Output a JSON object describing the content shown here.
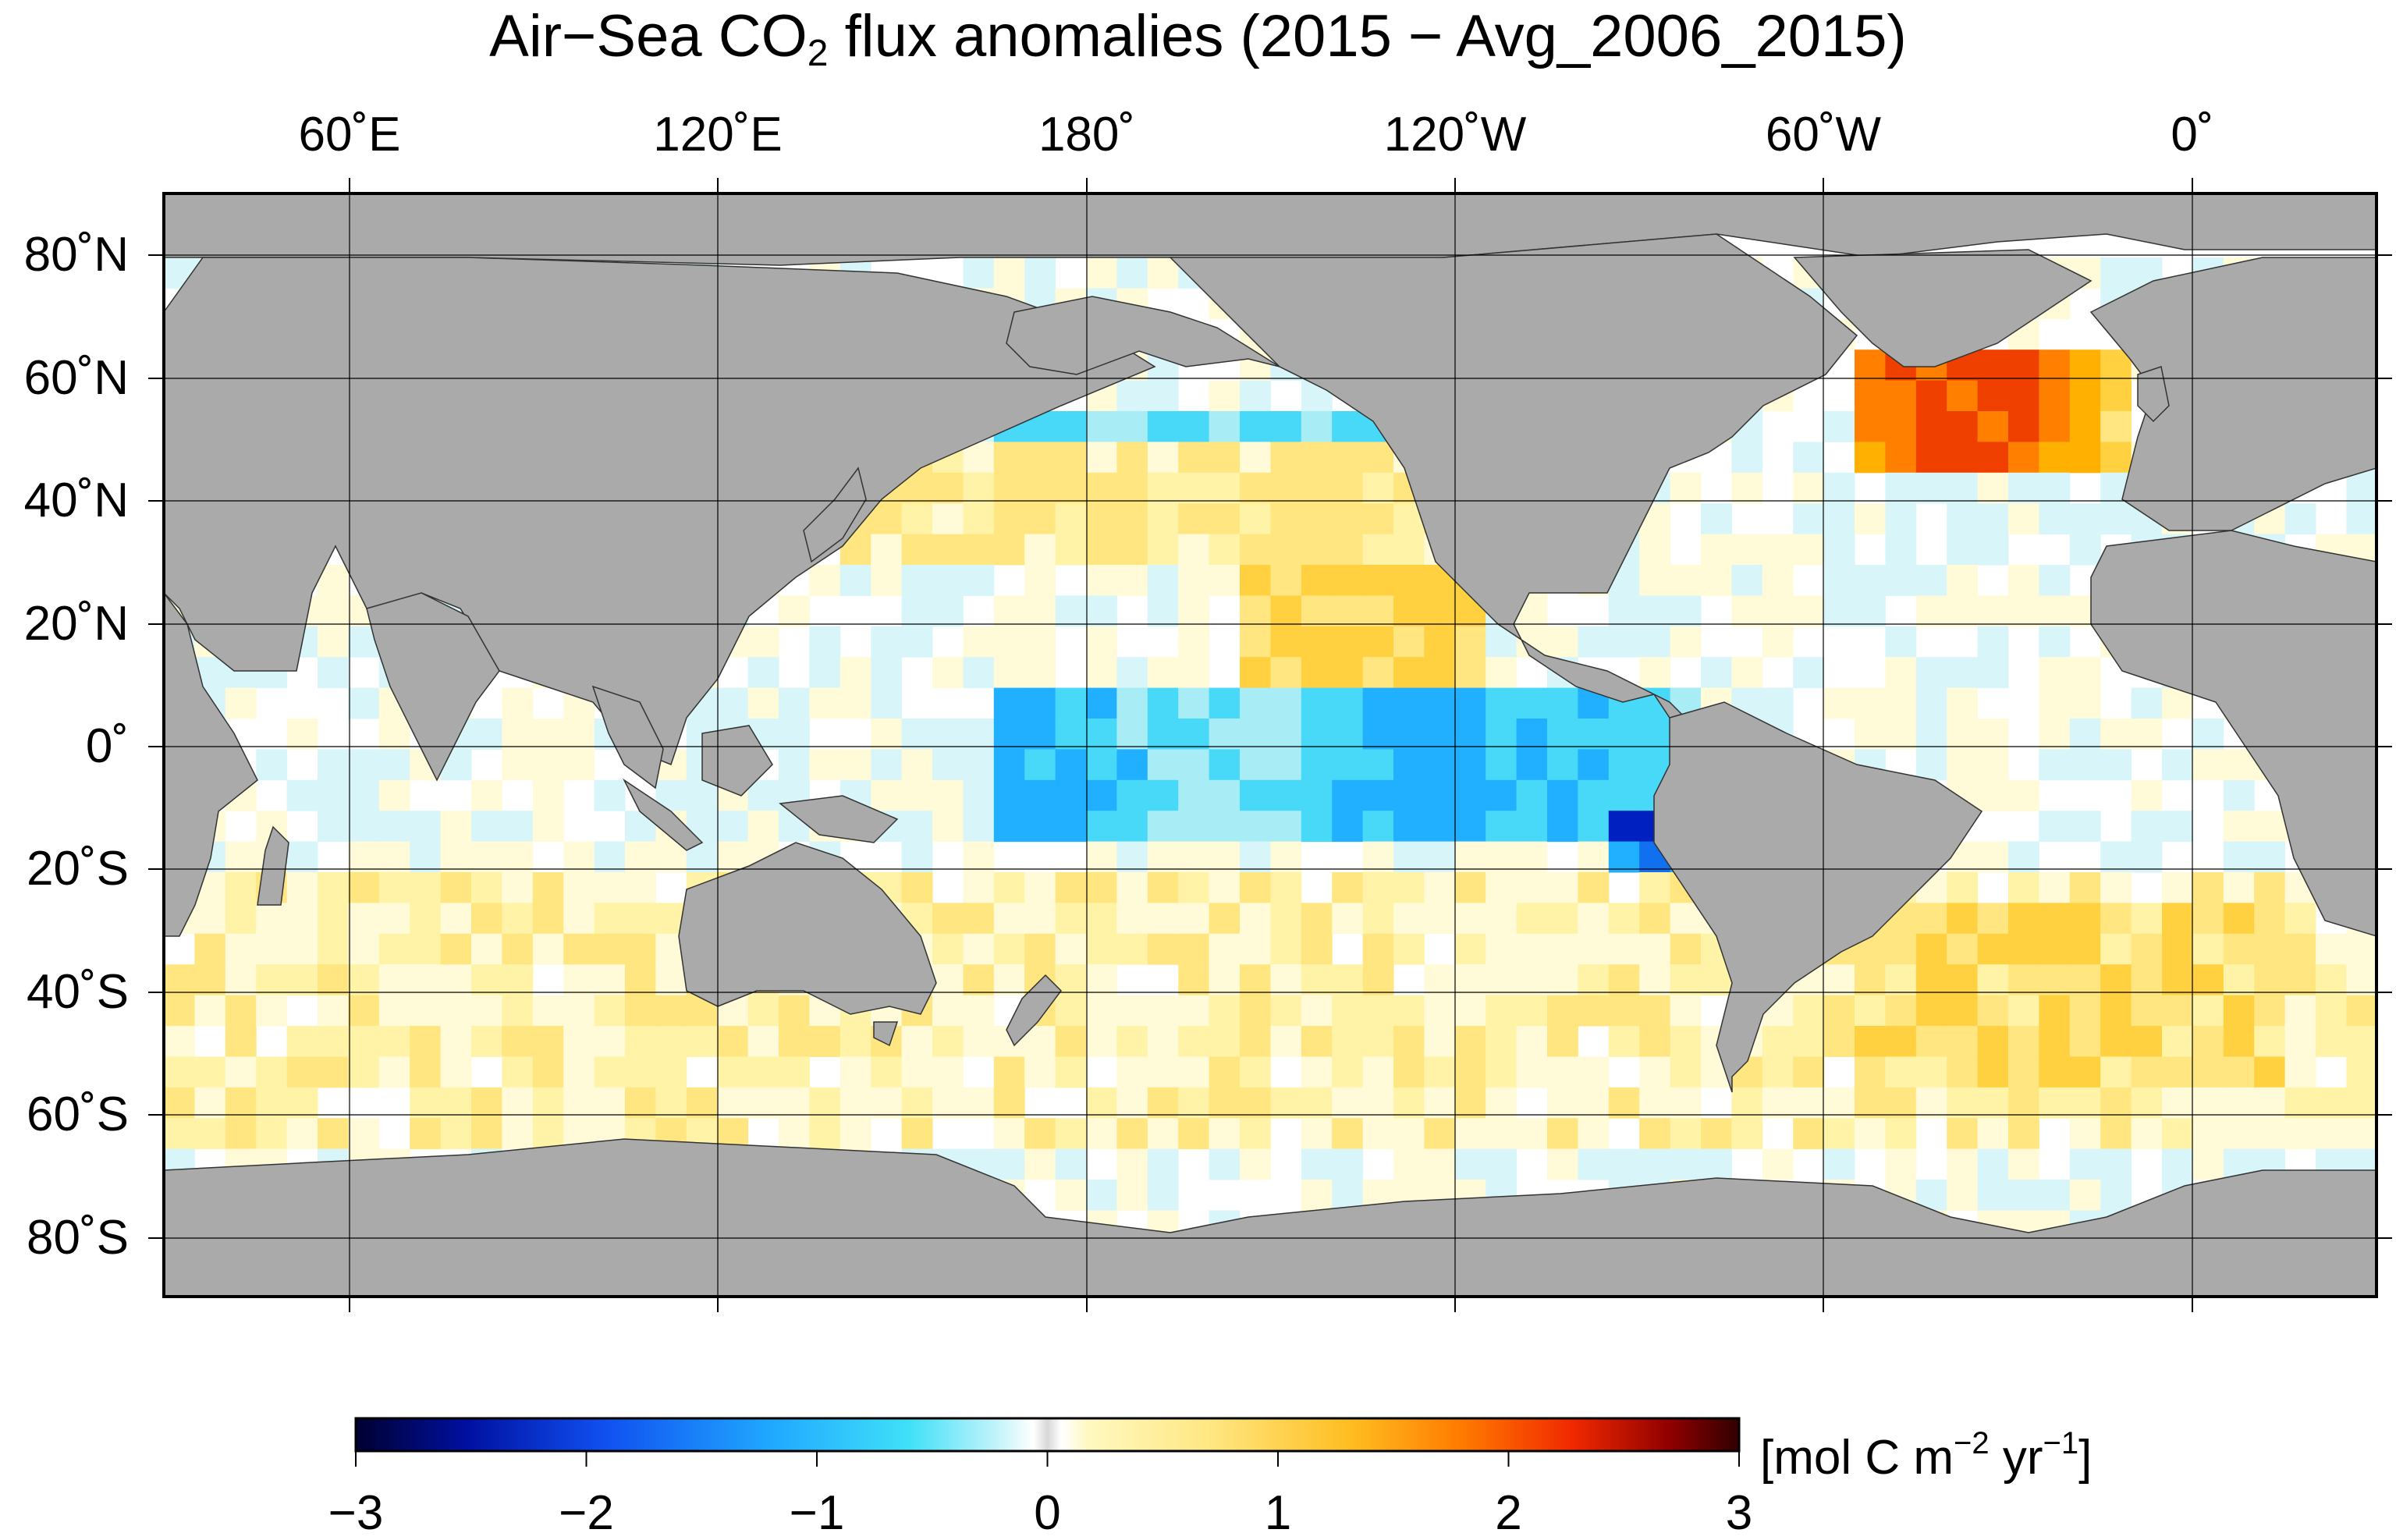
{
  "title": {
    "main": "Air−Sea CO",
    "subscript": "2",
    "rest": " flux anomalies  (2015 − Avg_2006_2015)"
  },
  "lon_labels": [
    "60˚E",
    "120˚E",
    "180˚",
    "120˚W",
    "60˚W",
    "0˚"
  ],
  "lat_labels": [
    "80˚N",
    "60˚N",
    "40˚N",
    "20˚N",
    "0˚",
    "20˚S",
    "40˚S",
    "60˚S",
    "80˚S"
  ],
  "colorbar": {
    "ticks": [
      "−3",
      "−2",
      "−1",
      "0",
      "1",
      "2",
      "3"
    ],
    "range": [
      -3,
      3
    ],
    "units_prefix": "[mol C m",
    "units_exp1": "−2",
    "units_mid": " yr",
    "units_exp2": "−1",
    "units_suffix": "]",
    "colors": [
      "#000040",
      "#0000a0",
      "#1060f0",
      "#20a0ff",
      "#40d8f8",
      "#b0eef8",
      "#ffffff",
      "#d8d8d8",
      "#fff6b0",
      "#ffe070",
      "#ffb800",
      "#ff7a00",
      "#f03000",
      "#a00000",
      "#500000"
    ]
  },
  "map": {
    "projection": "equirectangular, centered 150°W? (dateline near center-left)",
    "land_color": "#aaaaaa",
    "ice_color": "#999999",
    "grid": true
  }
}
